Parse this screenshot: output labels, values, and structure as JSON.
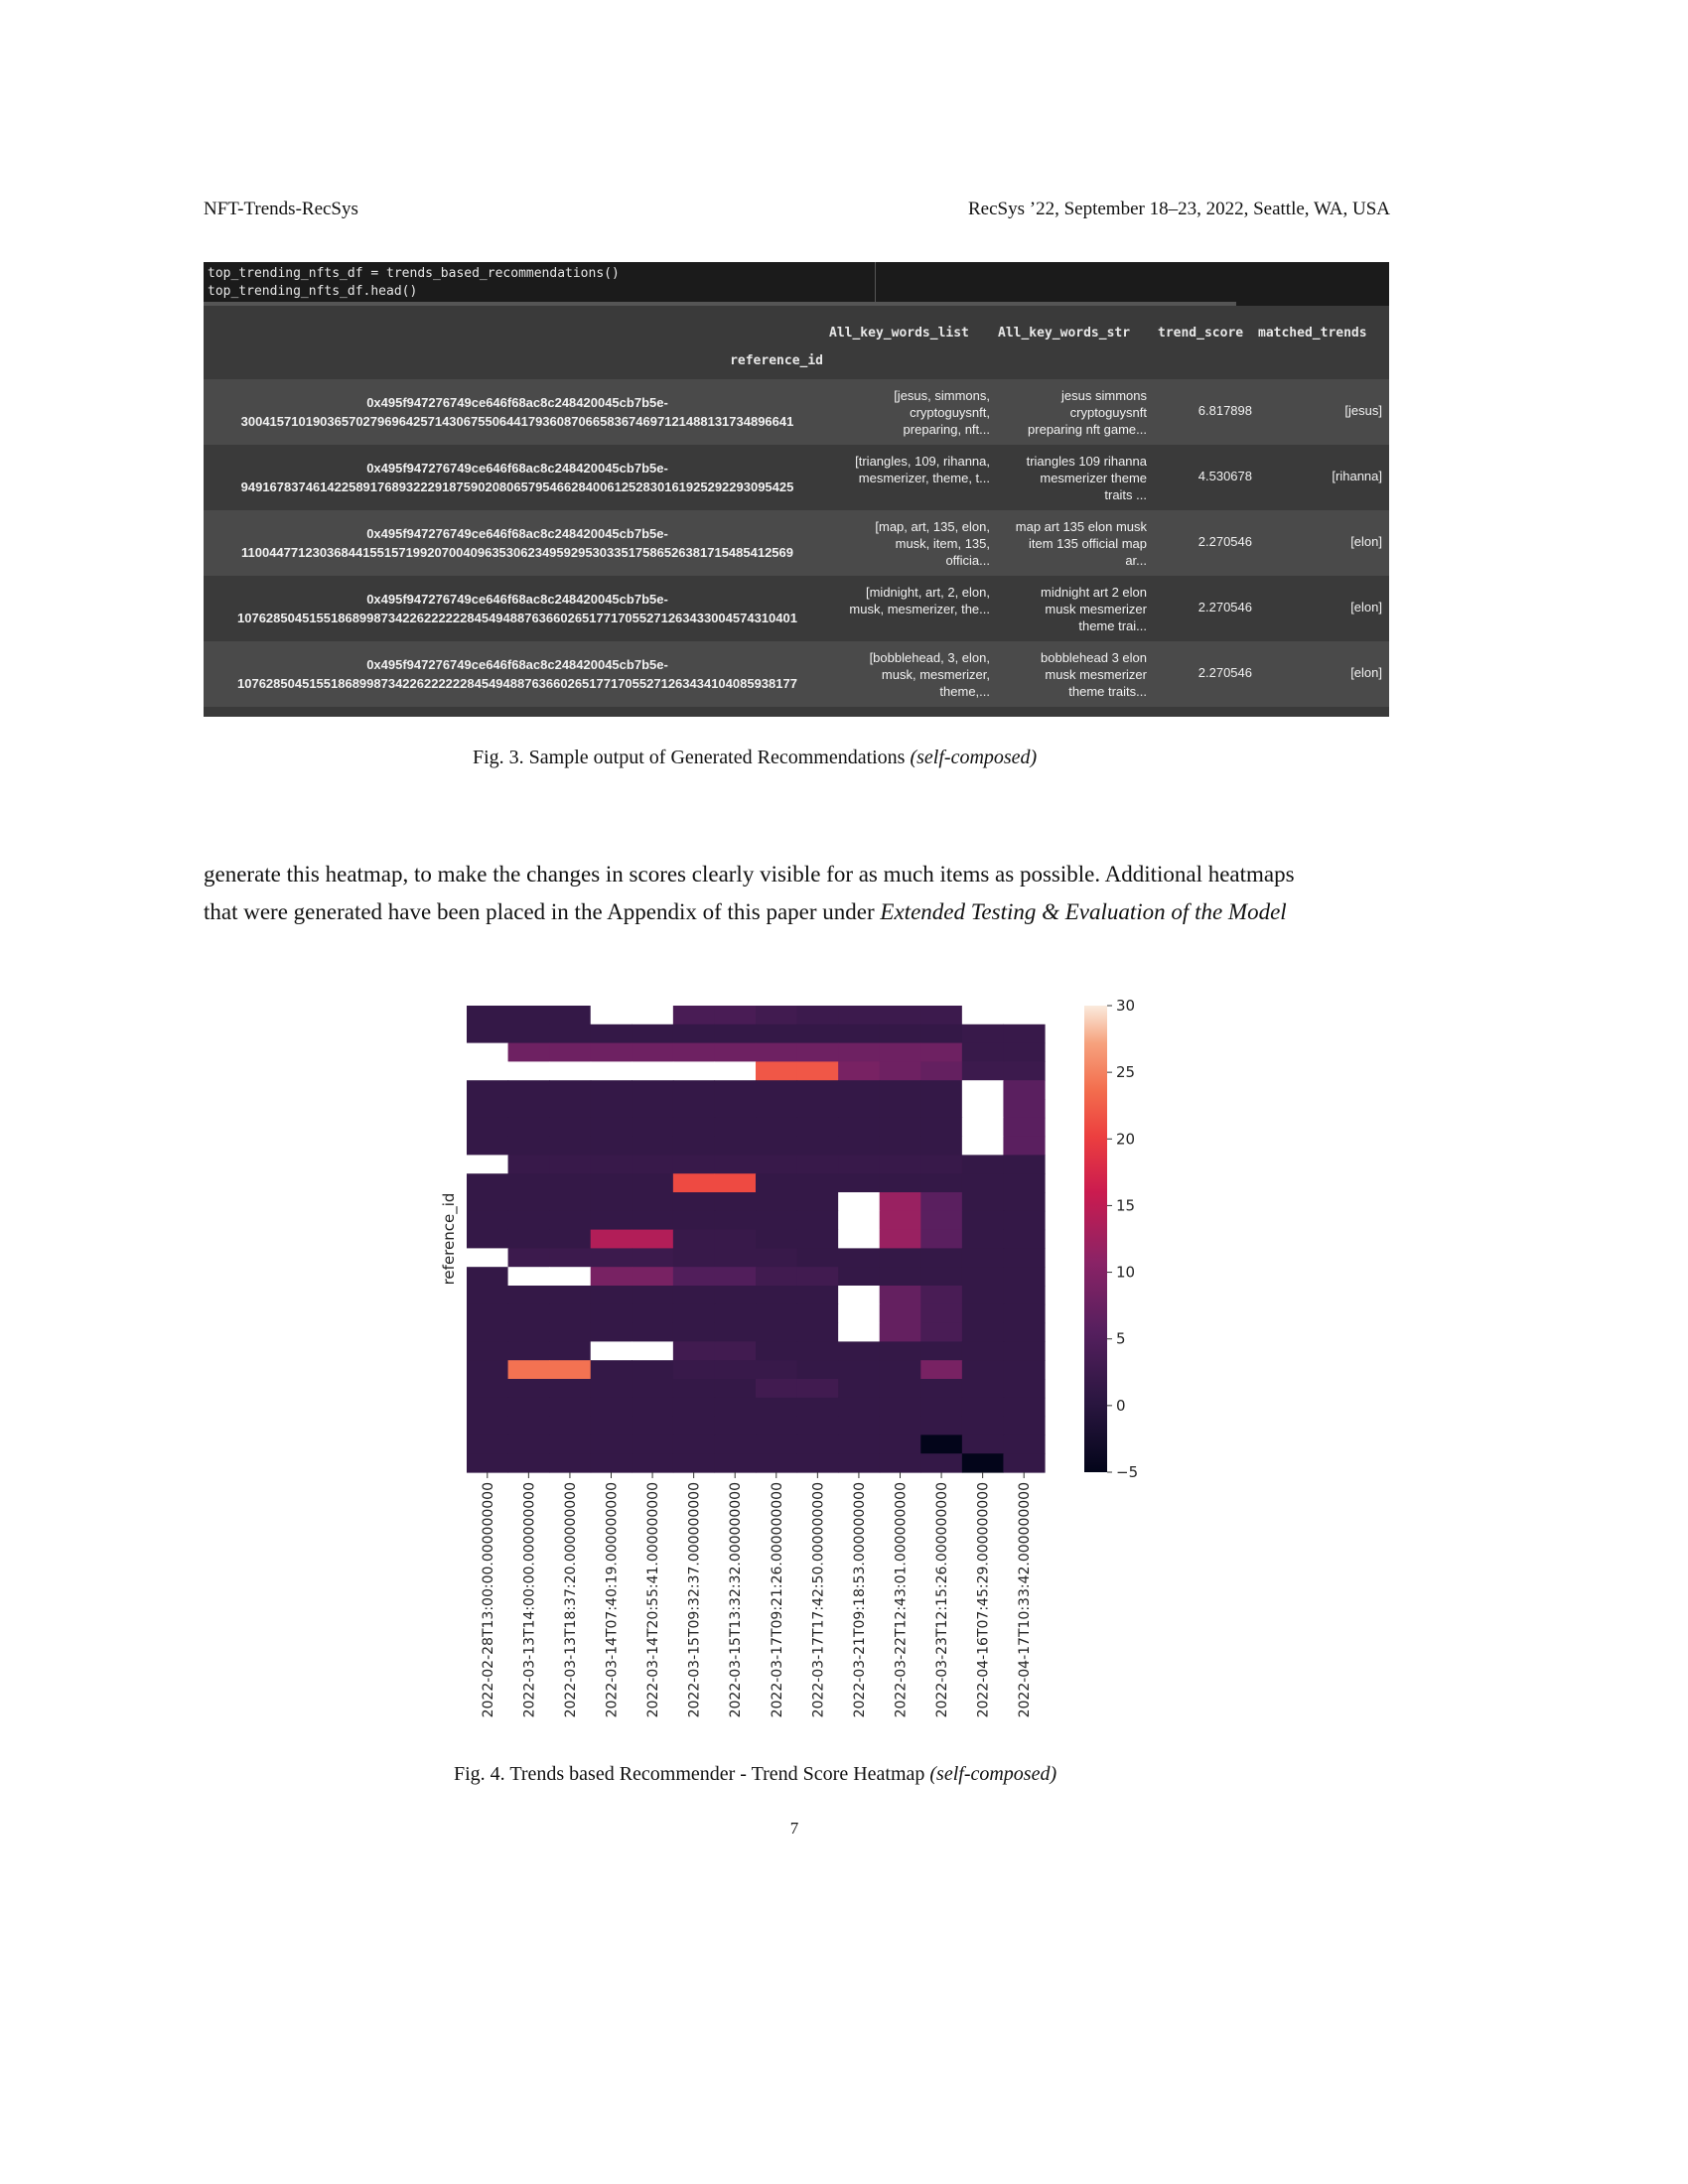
{
  "header": {
    "left": "NFT-Trends-RecSys",
    "right": "RecSys ’22, September 18–23, 2022, Seattle, WA, USA"
  },
  "notebook": {
    "code_line1": "top_trending_nfts_df = trends_based_recommendations()",
    "code_line2": "top_trending_nfts_df.head()",
    "columns": [
      "All_key_words_list",
      "All_key_words_str",
      "trend_score",
      "matched_trends"
    ],
    "index_name": "reference_id",
    "rows": [
      {
        "ref1": "0x495f947276749ce646f68ac8c248420045cb7b5e-",
        "ref2": "30041571019036570279696425714306755064417936087066583674697121488131734896641",
        "kwl": [
          "[jesus, simmons,",
          "cryptoguysnft,",
          "preparing, nft..."
        ],
        "kws": [
          "jesus simmons",
          "cryptoguysnft",
          "preparing nft game..."
        ],
        "score": "6.817898",
        "matched": "[jesus]"
      },
      {
        "ref1": "0x495f947276749ce646f68ac8c248420045cb7b5e-",
        "ref2": "94916783746142258917689322291875902080657954662840061252830161925292293095425",
        "kwl": [
          "[triangles, 109, rihanna,",
          "mesmerizer, theme, t..."
        ],
        "kws": [
          "triangles 109 rihanna",
          "mesmerizer theme",
          "traits ..."
        ],
        "score": "4.530678",
        "matched": "[rihanna]"
      },
      {
        "ref1": "0x495f947276749ce646f68ac8c248420045cb7b5e-",
        "ref2": "11004477123036844155157199207004096353062349592953033517586526381715485412569",
        "kwl": [
          "[map, art, 135, elon,",
          "musk, item, 135,",
          "officia..."
        ],
        "kws": [
          "map art 135 elon musk",
          "item 135 official map",
          "ar..."
        ],
        "score": "2.270546",
        "matched": "[elon]"
      },
      {
        "ref1": "0x495f947276749ce646f68ac8c248420045cb7b5e-",
        "ref2": "107628504515518689987342262222228454948876366026517717055271263433004574310401",
        "kwl": [
          "[midnight, art, 2, elon,",
          "musk, mesmerizer, the..."
        ],
        "kws": [
          "midnight art 2 elon",
          "musk mesmerizer",
          "theme trai..."
        ],
        "score": "2.270546",
        "matched": "[elon]"
      },
      {
        "ref1": "0x495f947276749ce646f68ac8c248420045cb7b5e-",
        "ref2": "107628504515518689987342262222228454948876366026517717055271263434104085938177",
        "kwl": [
          "[bobblehead, 3, elon,",
          "musk, mesmerizer,",
          "theme,..."
        ],
        "kws": [
          "bobblehead 3 elon",
          "musk mesmerizer",
          "theme traits..."
        ],
        "score": "2.270546",
        "matched": "[elon]"
      }
    ]
  },
  "fig3_caption": {
    "label": "Fig. 3.  Sample output of Generated Recommendations ",
    "note": "(self-composed)"
  },
  "paragraph": {
    "line1": "generate this heatmap, to make the changes in scores clearly visible for as much items as possible. Additional heatmaps",
    "line2_plain": "that were generated have been placed in the Appendix of this paper under ",
    "line2_italic": "Extended Testing & Evaluation of the Model"
  },
  "chart_data": {
    "type": "heatmap",
    "title": "",
    "xlabel": "",
    "ylabel": "reference_id",
    "x": [
      "2022-02-28T13:00:00.000000000",
      "2022-03-13T14:00:00.000000000",
      "2022-03-13T18:37:20.000000000",
      "2022-03-14T07:40:19.000000000",
      "2022-03-14T20:55:41.000000000",
      "2022-03-15T09:32:37.000000000",
      "2022-03-15T13:32:32.000000000",
      "2022-03-17T09:21:26.000000000",
      "2022-03-17T17:42:50.000000000",
      "2022-03-21T09:18:53.000000000",
      "2022-03-22T12:43:01.000000000",
      "2022-03-23T12:15:26.000000000",
      "2022-04-16T07:45:29.000000000",
      "2022-04-17T10:33:42.000000000"
    ],
    "colorbar": {
      "min": -5,
      "max": 30,
      "ticks": [
        -5,
        0,
        5,
        10,
        15,
        20,
        25,
        30
      ]
    },
    "values": [
      [
        1.5,
        1.5,
        1.5,
        31,
        31,
        4,
        4,
        3,
        2.5,
        2.5,
        2.5,
        2.5,
        null,
        null
      ],
      [
        1.5,
        1.5,
        1.5,
        1.5,
        1.5,
        1.5,
        1.5,
        1.5,
        1.5,
        1.5,
        1.5,
        1.5,
        2,
        2
      ],
      [
        null,
        8,
        8,
        8,
        8,
        8,
        8,
        8,
        8,
        8,
        8,
        8,
        2,
        2
      ],
      [
        31,
        31,
        31,
        31,
        31,
        31,
        31,
        22,
        22,
        9,
        8,
        7,
        2.5,
        2.5
      ],
      [
        1.5,
        1.5,
        1.5,
        1.5,
        1.5,
        1.5,
        1.5,
        1.5,
        1.5,
        1.5,
        1.5,
        1.5,
        31,
        6
      ],
      [
        1.5,
        1.5,
        1.5,
        1.5,
        1.5,
        1.5,
        1.5,
        1.5,
        1.5,
        1.5,
        1.5,
        1.5,
        31,
        6
      ],
      [
        1.5,
        1.5,
        1.5,
        1.5,
        1.5,
        1.5,
        1.5,
        1.5,
        1.5,
        1.5,
        1.5,
        1.5,
        31,
        6
      ],
      [
        1.5,
        1.5,
        1.5,
        1.5,
        1.5,
        1.5,
        1.5,
        1.5,
        1.5,
        1.5,
        1.5,
        1.5,
        31,
        6
      ],
      [
        31,
        2,
        2,
        2,
        2,
        2,
        2,
        2,
        2,
        2,
        2,
        2,
        1.5,
        1.5
      ],
      [
        1.5,
        1.5,
        1.5,
        1.5,
        1.5,
        21,
        21,
        1.5,
        1.5,
        1.5,
        1.5,
        1.5,
        1.5,
        1.5
      ],
      [
        1.5,
        1.5,
        1.5,
        1.5,
        1.5,
        1.5,
        1.5,
        1.5,
        1.5,
        31,
        12,
        6,
        1.5,
        1.5
      ],
      [
        1.5,
        1.5,
        1.5,
        1.5,
        1.5,
        1.5,
        1.5,
        1.5,
        1.5,
        31,
        12,
        6,
        1.5,
        1.5
      ],
      [
        1.5,
        1.5,
        1.5,
        14,
        14,
        2,
        2,
        1.5,
        1.5,
        31,
        12,
        6,
        1.5,
        1.5
      ],
      [
        31,
        2.5,
        2.5,
        2.5,
        2.5,
        2,
        2,
        2,
        1.5,
        1.5,
        1.5,
        1.5,
        1.5,
        1.5
      ],
      [
        1.5,
        31,
        31,
        9,
        9,
        5,
        5,
        3,
        3,
        1.5,
        1.5,
        1.5,
        1.5,
        1.5
      ],
      [
        1.5,
        1.5,
        1.5,
        1.5,
        1.5,
        1.5,
        1.5,
        1.5,
        1.5,
        31,
        7,
        4,
        1.5,
        1.5
      ],
      [
        1.5,
        1.5,
        1.5,
        1.5,
        1.5,
        1.5,
        1.5,
        1.5,
        1.5,
        31,
        7,
        4,
        1.5,
        1.5
      ],
      [
        1.5,
        1.5,
        1.5,
        1.5,
        1.5,
        1.5,
        1.5,
        1.5,
        1.5,
        31,
        7,
        4,
        1.5,
        1.5
      ],
      [
        1.5,
        1.5,
        1.5,
        31,
        31,
        3,
        3,
        1.5,
        1.5,
        1.5,
        1.5,
        1.5,
        1.5,
        1.5
      ],
      [
        1.5,
        24,
        24,
        1.5,
        1.5,
        2,
        2,
        2,
        1.5,
        1.5,
        1.5,
        9,
        1.5,
        1.5
      ],
      [
        1.5,
        1.5,
        1.5,
        1.5,
        1.5,
        1.5,
        1.5,
        3,
        3,
        1.5,
        1.5,
        1.5,
        1.5,
        1.5
      ],
      [
        1.5,
        1.5,
        1.5,
        1.5,
        1.5,
        1.5,
        1.5,
        1.5,
        1.5,
        1.5,
        1.5,
        1.5,
        1.5,
        1.5
      ],
      [
        1.5,
        1.5,
        1.5,
        1.5,
        1.5,
        1.5,
        1.5,
        1.5,
        1.5,
        1.5,
        1.5,
        1.5,
        1.5,
        1.5
      ],
      [
        1.5,
        1.5,
        1.5,
        1.5,
        1.5,
        1.5,
        1.5,
        1.5,
        1.5,
        1.5,
        1.5,
        -5,
        1.5,
        1.5
      ],
      [
        1.5,
        1.5,
        1.5,
        1.5,
        1.5,
        1.5,
        1.5,
        1.5,
        1.5,
        1.5,
        1.5,
        1.5,
        -5,
        1.5
      ]
    ]
  },
  "fig4_caption": {
    "label": "Fig. 4.  Trends based Recommender - Trend Score Heatmap ",
    "note": "(self-composed)"
  },
  "page_number": "7"
}
